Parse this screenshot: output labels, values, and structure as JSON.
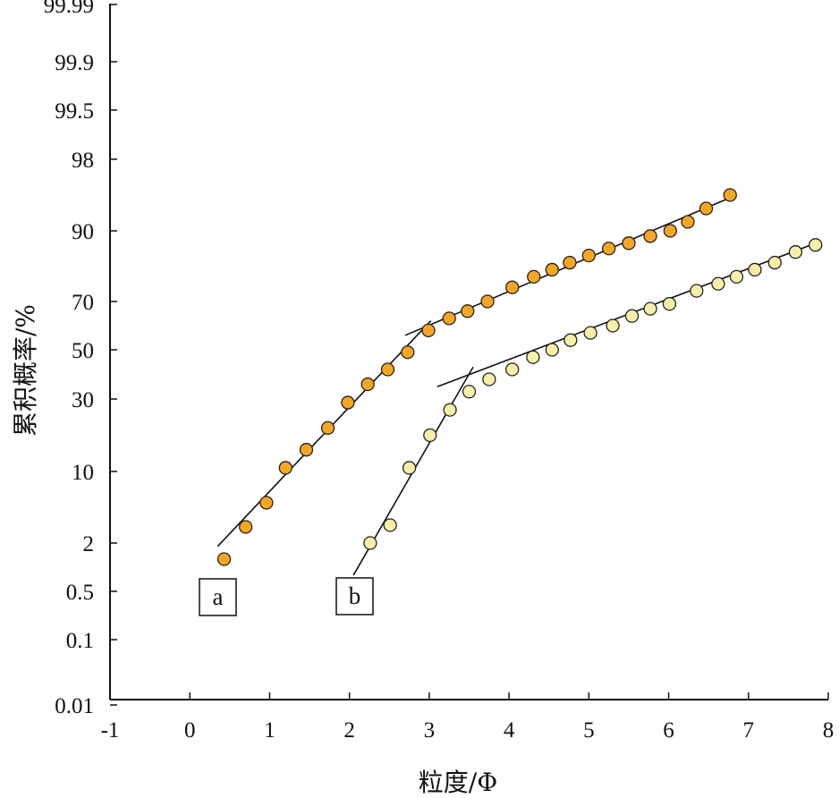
{
  "chart_data": {
    "type": "scatter",
    "title": "",
    "xlabel": "粒度/Φ",
    "ylabel": "累积概率/%",
    "xlim": [
      -1,
      8
    ],
    "y_scale": "probability",
    "x_ticks": [
      "-1",
      "0",
      "1",
      "2",
      "3",
      "4",
      "5",
      "6",
      "7",
      "8"
    ],
    "y_ticks": [
      "0.01",
      "0.1",
      "0.5",
      "2",
      "10",
      "30",
      "50",
      "70",
      "90",
      "98",
      "99.5",
      "99.9",
      "99.99"
    ],
    "grid": false,
    "legend": "none",
    "series": [
      {
        "name": "a",
        "color": "#F5A623",
        "x": [
          0.43,
          0.7,
          0.96,
          1.2,
          1.46,
          1.73,
          1.98,
          2.23,
          2.48,
          2.73,
          2.99,
          3.25,
          3.48,
          3.73,
          4.04,
          4.31,
          4.54,
          4.76,
          5.0,
          5.25,
          5.5,
          5.77,
          6.02,
          6.24,
          6.47,
          6.77
        ],
        "y": [
          1.5,
          3.8,
          6.5,
          11.0,
          16.0,
          22.0,
          29.0,
          36.0,
          42.0,
          49.0,
          58.0,
          63.0,
          66.0,
          70.0,
          74.0,
          77.0,
          79.0,
          81.0,
          83.0,
          85.0,
          86.5,
          88.5,
          90.0,
          91.0,
          92.5,
          94.0
        ],
        "fit_lines": [
          {
            "x": [
              0.35,
              3.02
            ],
            "y": [
              1.9,
              62.0
            ]
          },
          {
            "x": [
              2.7,
              6.85
            ],
            "y": [
              56.0,
              94.0
            ]
          }
        ]
      },
      {
        "name": "b",
        "color": "#F7EFA8",
        "x": [
          2.26,
          2.51,
          2.75,
          3.01,
          3.26,
          3.5,
          3.75,
          4.04,
          4.3,
          4.54,
          4.77,
          5.02,
          5.3,
          5.54,
          5.77,
          6.01,
          6.35,
          6.62,
          6.85,
          7.08,
          7.33,
          7.59,
          7.84
        ],
        "y": [
          2.0,
          4.0,
          11.0,
          20.0,
          27.0,
          33.0,
          38.0,
          42.0,
          47.0,
          50.0,
          54.0,
          57.0,
          60.0,
          64.0,
          67.0,
          69.0,
          73.0,
          75.0,
          77.0,
          79.0,
          81.0,
          84.0,
          86.0
        ],
        "fit_lines": [
          {
            "x": [
              2.05,
              3.55
            ],
            "y": [
              1.0,
              43.0
            ]
          },
          {
            "x": [
              3.1,
              7.9
            ],
            "y": [
              35.0,
              87.0
            ]
          }
        ]
      }
    ],
    "annotations": [
      "a",
      "b"
    ]
  }
}
